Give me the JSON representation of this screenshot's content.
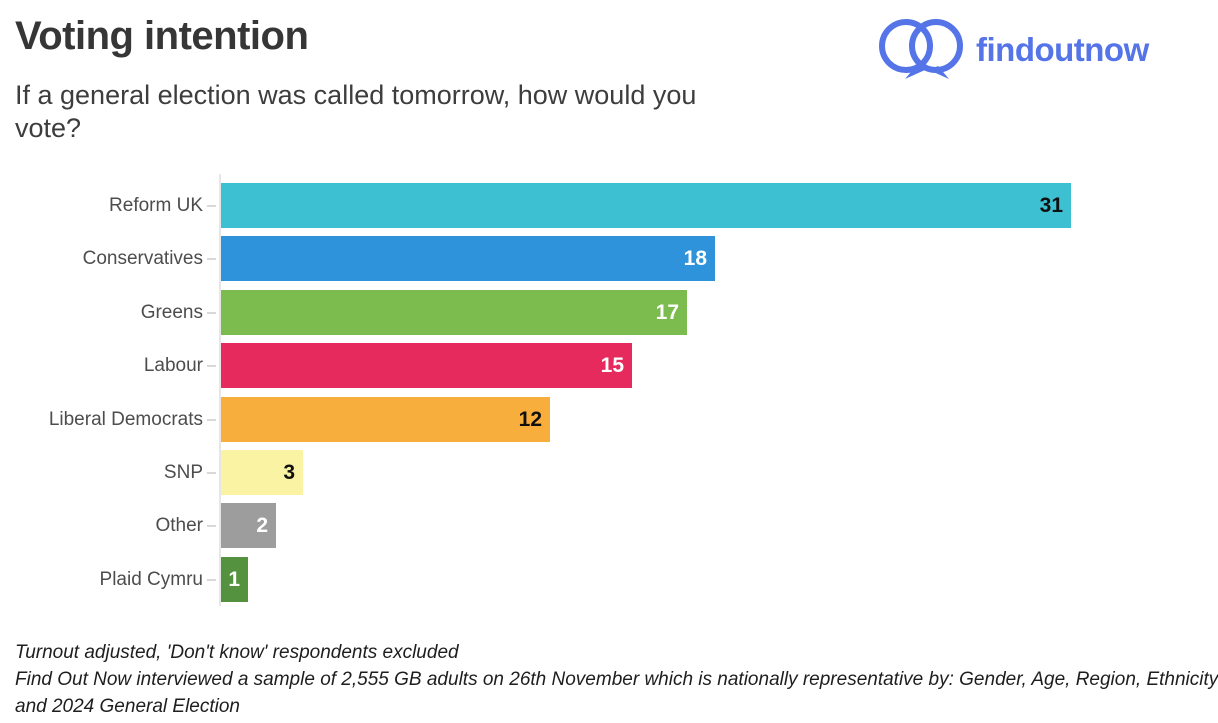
{
  "header": {
    "title": "Voting intention",
    "subtitle_lines": [
      "If a general election was called tomorrow, how would you",
      "vote?"
    ],
    "logo": {
      "text": "findoutnow",
      "color": "#5474E8",
      "icon": "two-overlapping-speech-bubbles-icon"
    }
  },
  "chart_data": {
    "type": "bar",
    "orientation": "horizontal",
    "title": "Voting intention",
    "subtitle": "If a general election was called tomorrow, how would you vote?",
    "categories": [
      "Reform UK",
      "Conservatives",
      "Greens",
      "Labour",
      "Liberal Democrats",
      "SNP",
      "Other",
      "Plaid Cymru"
    ],
    "values": [
      31,
      18,
      17,
      15,
      12,
      3,
      2,
      1
    ],
    "bar_colors": [
      "#3EC0D3",
      "#2E93DB",
      "#7CBB4E",
      "#E62A5D",
      "#F7AE3D",
      "#FAF3A3",
      "#9D9D9D",
      "#54923F"
    ],
    "value_label_colors": [
      "#101010",
      "#FFFFFF",
      "#FFFFFF",
      "#FFFFFF",
      "#101010",
      "#101010",
      "#FFFFFF",
      "#FFFFFF"
    ],
    "xlim": [
      0,
      31
    ],
    "grid": false,
    "legend": "none",
    "value_labels": "inside-end",
    "axis_line_color": "#E6E6E6",
    "tick_color": "#D8D8D8",
    "category_label_color": "#4D4D4D"
  },
  "footer": {
    "lines": [
      "Turnout adjusted, 'Don't know' respondents excluded",
      "Find Out Now interviewed a sample of 2,555 GB adults on 26th November which is nationally representative by: Gender, Age, Region, Ethnicity",
      "and 2024 General Election"
    ]
  }
}
